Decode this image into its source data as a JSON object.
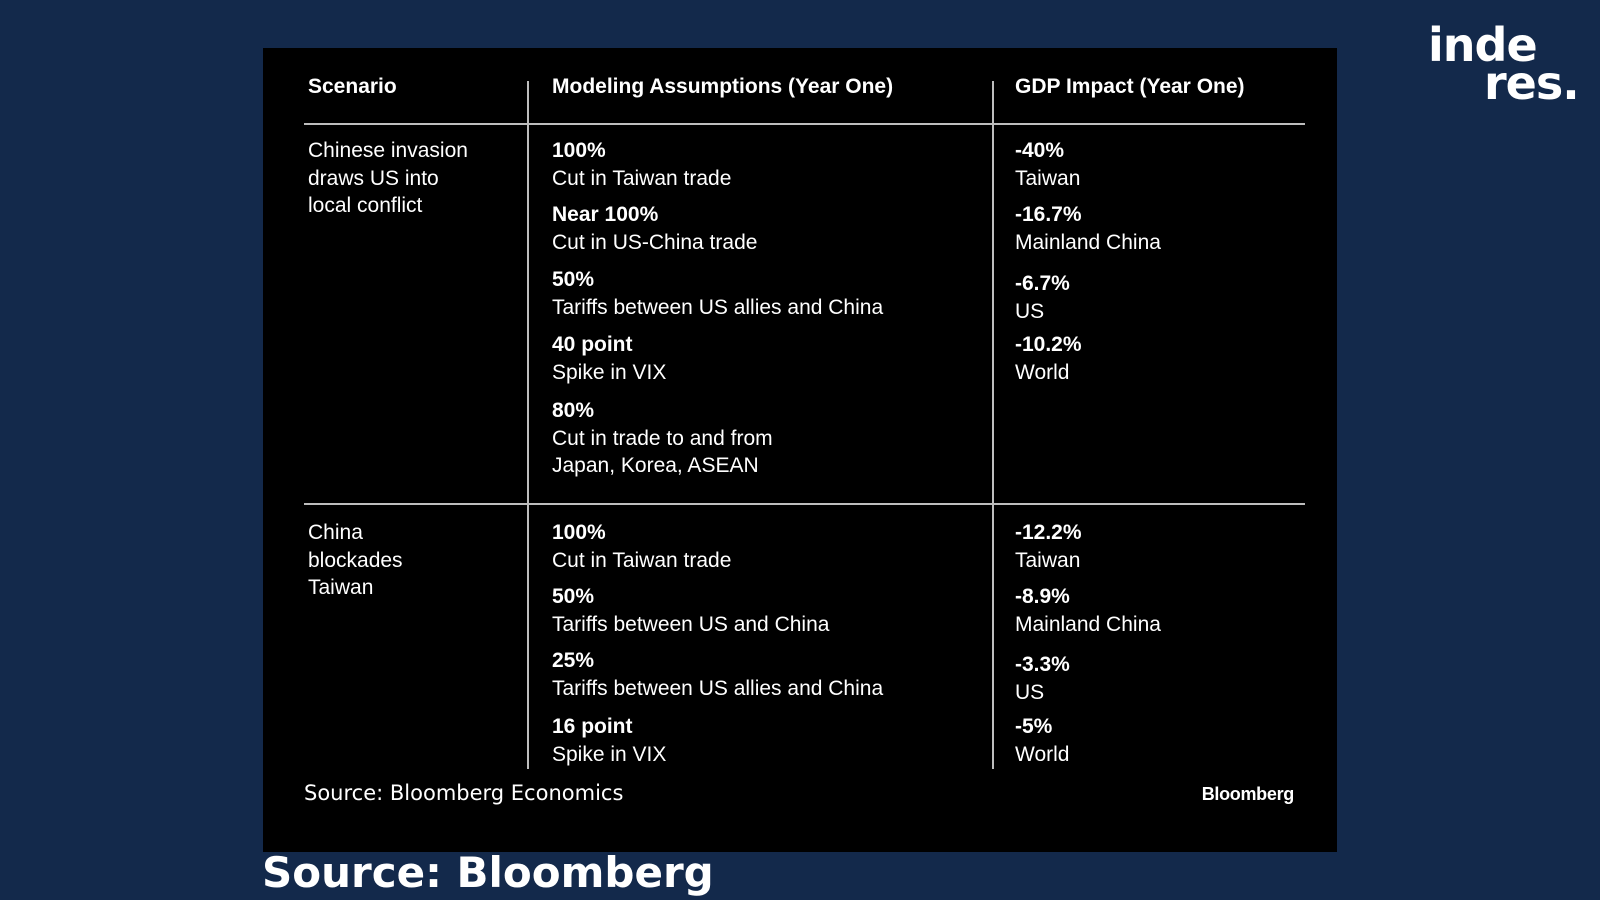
{
  "logo": {
    "line1": "inde",
    "line2": "res."
  },
  "table": {
    "headers": [
      "Scenario",
      "Modeling Assumptions (Year One)",
      "GDP Impact (Year One)"
    ],
    "rows": [
      {
        "scenario": "Chinese invasion\ndraws US into\nlocal conflict",
        "assumptions": [
          {
            "value": "100%",
            "desc": "Cut in Taiwan trade"
          },
          {
            "value": "Near 100%",
            "desc": "Cut in US-China trade"
          },
          {
            "value": "50%",
            "desc": "Tariffs between US allies and China"
          },
          {
            "value": "40 point",
            "desc": "Spike in VIX"
          },
          {
            "value": "80%",
            "desc": "Cut in trade to and from\nJapan, Korea, ASEAN"
          }
        ],
        "impacts": [
          {
            "value": "-40%",
            "desc": "Taiwan"
          },
          {
            "value": "-16.7%",
            "desc": "Mainland China"
          },
          {
            "value": "-6.7%",
            "desc": "US"
          },
          {
            "value": "-10.2%",
            "desc": "World"
          }
        ]
      },
      {
        "scenario": "China\nblockades\nTaiwan",
        "assumptions": [
          {
            "value": "100%",
            "desc": "Cut in Taiwan trade"
          },
          {
            "value": "50%",
            "desc": "Tariffs between US and China"
          },
          {
            "value": "25%",
            "desc": "Tariffs between US allies and China"
          },
          {
            "value": "16 point",
            "desc": "Spike in VIX"
          }
        ],
        "impacts": [
          {
            "value": "-12.2%",
            "desc": "Taiwan"
          },
          {
            "value": "-8.9%",
            "desc": "Mainland China"
          },
          {
            "value": "-3.3%",
            "desc": "US"
          },
          {
            "value": "-5%",
            "desc": "World"
          }
        ]
      }
    ]
  },
  "footer": {
    "source": "Source:  Bloomberg Economics",
    "brand": "Bloomberg"
  },
  "caption": "Source: Bloomberg",
  "colors": {
    "background": "#13294b",
    "panel": "#000000",
    "text": "#ffffff",
    "rule": "#bdbdbd"
  }
}
